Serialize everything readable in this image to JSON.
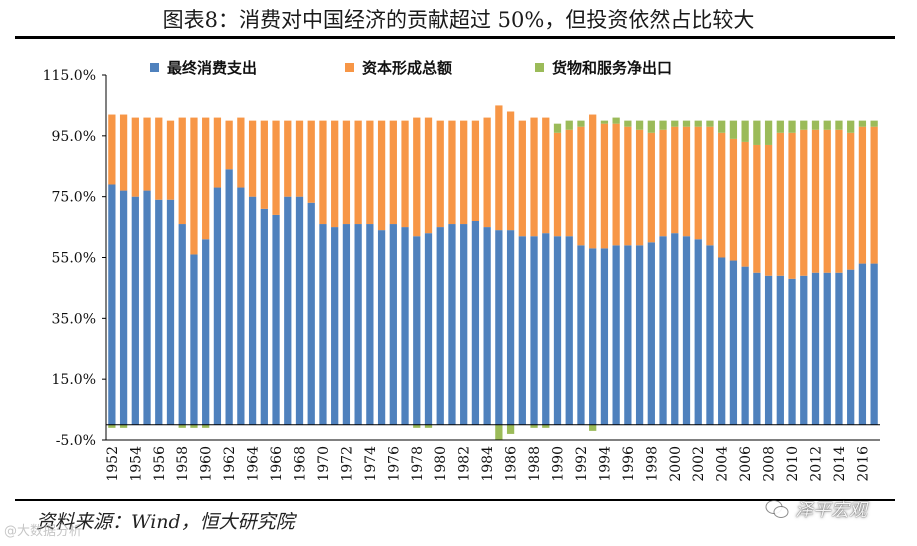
{
  "title": "图表8：消费对中国经济的贡献超过 50%，但投资依然占比较大",
  "source": "资料来源：Wind，恒大研究院",
  "watermark_right": "泽平宏观",
  "watermark_left": "@大数据分析",
  "colors": {
    "consumption": "#4f81bd",
    "investment": "#f79646",
    "net_exports": "#9bbb59",
    "axis": "#000000"
  },
  "chart_data": {
    "type": "bar",
    "stacked": true,
    "title": "图表8：消费对中国经济的贡献超过 50%，但投资依然占比较大",
    "xlabel": "",
    "ylabel": "",
    "ylim": [
      -5,
      115
    ],
    "yticks": [
      "115.0%",
      "95.0%",
      "75.0%",
      "55.0%",
      "35.0%",
      "15.0%",
      "-5.0%"
    ],
    "ytick_values": [
      115,
      95,
      75,
      55,
      35,
      15,
      -5
    ],
    "xtick_labels": [
      "1952",
      "1954",
      "1956",
      "1958",
      "1960",
      "1962",
      "1964",
      "1966",
      "1968",
      "1970",
      "1972",
      "1974",
      "1976",
      "1978",
      "1980",
      "1982",
      "1984",
      "1986",
      "1988",
      "1990",
      "1992",
      "1994",
      "1996",
      "1998",
      "2000",
      "2002",
      "2004",
      "2006",
      "2008",
      "2010",
      "2012",
      "2014",
      "2016"
    ],
    "legend_position": "top",
    "categories": [
      1952,
      1953,
      1954,
      1955,
      1956,
      1957,
      1958,
      1959,
      1960,
      1961,
      1962,
      1963,
      1964,
      1965,
      1966,
      1967,
      1968,
      1969,
      1970,
      1971,
      1972,
      1973,
      1974,
      1975,
      1976,
      1977,
      1978,
      1979,
      1980,
      1981,
      1982,
      1983,
      1984,
      1985,
      1986,
      1987,
      1988,
      1989,
      1990,
      1991,
      1992,
      1993,
      1994,
      1995,
      1996,
      1997,
      1998,
      1999,
      2000,
      2001,
      2002,
      2003,
      2004,
      2005,
      2006,
      2007,
      2008,
      2009,
      2010,
      2011,
      2012,
      2013,
      2014,
      2015,
      2016,
      2017
    ],
    "series": [
      {
        "name": "最终消费支出",
        "values": [
          79,
          77,
          75,
          77,
          74,
          74,
          66,
          56,
          61,
          78,
          84,
          78,
          75,
          71,
          69,
          75,
          75,
          73,
          66,
          65,
          66,
          66,
          66,
          64,
          66,
          65,
          62,
          63,
          65,
          66,
          66,
          67,
          65,
          64,
          64,
          62,
          62,
          63,
          62,
          62,
          59,
          58,
          58,
          59,
          59,
          59,
          60,
          62,
          63,
          62,
          61,
          59,
          55,
          54,
          52,
          50,
          49,
          49,
          48,
          49,
          50,
          50,
          50,
          51,
          53,
          53
        ]
      },
      {
        "name": "资本形成总额",
        "values": [
          23,
          25,
          26,
          24,
          27,
          26,
          35,
          45,
          40,
          23,
          16,
          23,
          25,
          29,
          31,
          25,
          25,
          27,
          34,
          35,
          34,
          34,
          34,
          36,
          34,
          35,
          39,
          38,
          35,
          34,
          34,
          33,
          36,
          41,
          39,
          38,
          39,
          38,
          34,
          35,
          39,
          44,
          41,
          40,
          39,
          38,
          36,
          35,
          35,
          36,
          37,
          39,
          41,
          40,
          41,
          42,
          43,
          47,
          48,
          48,
          47,
          47,
          47,
          45,
          45,
          45
        ]
      },
      {
        "name": "货物和服务净出口",
        "values": [
          -1,
          -1,
          0,
          0,
          0,
          0,
          -1,
          -1,
          -1,
          0,
          0,
          0,
          0,
          0,
          0,
          0,
          0,
          0,
          0,
          0,
          0,
          0,
          0,
          0,
          0,
          0,
          -1,
          -1,
          0,
          0,
          0,
          0,
          0,
          -5,
          -3,
          0,
          -1,
          -1,
          3,
          3,
          2,
          -2,
          1,
          2,
          2,
          3,
          4,
          3,
          2,
          2,
          2,
          2,
          4,
          6,
          7,
          8,
          8,
          4,
          4,
          3,
          3,
          3,
          3,
          4,
          2,
          2
        ]
      }
    ]
  }
}
